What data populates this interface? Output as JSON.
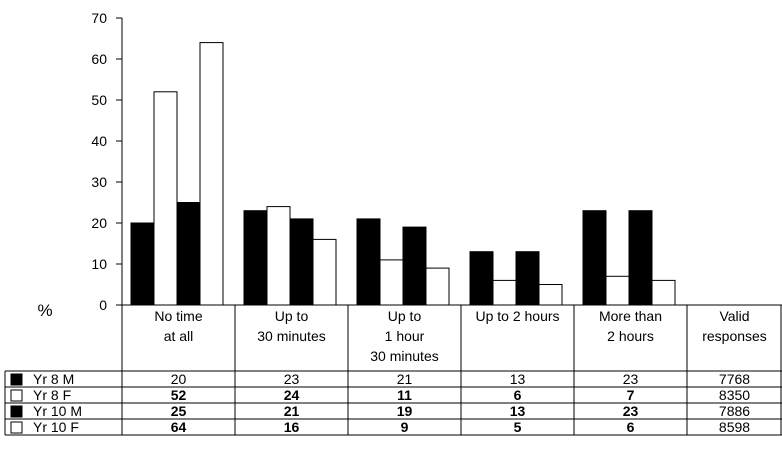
{
  "chart_data": {
    "type": "bar",
    "ylabel": "%",
    "ylim": [
      0,
      70
    ],
    "yticks": [
      0,
      10,
      20,
      30,
      40,
      50,
      60,
      70
    ],
    "grid": false,
    "categories": [
      [
        "No time",
        "at all"
      ],
      [
        "Up to",
        "30 minutes"
      ],
      [
        "Up to",
        "1 hour",
        "30 minutes"
      ],
      [
        "Up to 2 hours"
      ],
      [
        "More than",
        "2 hours"
      ]
    ],
    "extra_column_header": [
      "Valid",
      "responses"
    ],
    "series": [
      {
        "name": "Yr 8 M",
        "color": "#000000",
        "values": [
          20,
          23,
          21,
          13,
          23
        ],
        "valid_responses": "7768",
        "bold": false
      },
      {
        "name": "Yr 8 F",
        "color": "#ffffff",
        "values": [
          52,
          24,
          11,
          6,
          7
        ],
        "valid_responses": "8350",
        "bold": true
      },
      {
        "name": "Yr 10 M",
        "color": "#000000",
        "values": [
          25,
          21,
          19,
          13,
          23
        ],
        "valid_responses": "7886",
        "bold": true
      },
      {
        "name": "Yr 10 F",
        "color": "#ffffff",
        "values": [
          64,
          16,
          9,
          5,
          6
        ],
        "valid_responses": "8598",
        "bold": true
      }
    ]
  }
}
